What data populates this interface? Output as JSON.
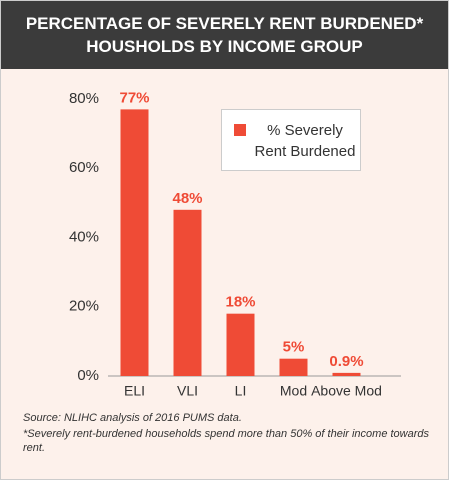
{
  "chart_data": {
    "type": "bar",
    "title": "PERCENTAGE OF SEVERELY RENT BURDENED* HOUSHOLDS BY INCOME GROUP",
    "categories": [
      "ELI",
      "VLI",
      "LI",
      "Mod",
      "Above Mod"
    ],
    "series": [
      {
        "name": "% Severely Rent Burdened",
        "color": "#ef4b36",
        "values": [
          77,
          48,
          18,
          5,
          0.9
        ],
        "value_labels": [
          "77%",
          "48%",
          "18%",
          "5%",
          "0.9%"
        ]
      }
    ],
    "ylim": [
      0,
      80
    ],
    "yticks": [
      {
        "value": 0,
        "label": "0%"
      },
      {
        "value": 20,
        "label": "20%"
      },
      {
        "value": 40,
        "label": "40%"
      },
      {
        "value": 60,
        "label": "60%"
      },
      {
        "value": 80,
        "label": "80%"
      }
    ],
    "source": "Source: NLIHC analysis of 2016 PUMS data.",
    "footnote": "*Severely rent-burdened households spend more than 50% of their income towards rent."
  }
}
